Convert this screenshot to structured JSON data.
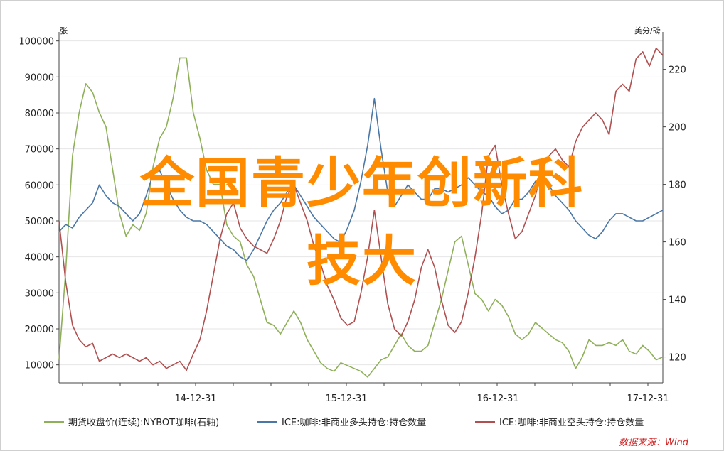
{
  "chart_data": {
    "type": "line",
    "left_unit": "张",
    "right_unit": "美分/磅",
    "y_left_ticks": [
      "10000",
      "20000",
      "30000",
      "40000",
      "50000",
      "60000",
      "70000",
      "80000",
      "90000",
      "100000"
    ],
    "y_left_range": [
      5000,
      102500
    ],
    "y_right_ticks": [
      "120",
      "140",
      "160",
      "180",
      "200",
      "220"
    ],
    "y_right_range": [
      111,
      233
    ],
    "x_ticks": [
      "14-12-31",
      "15-12-31",
      "16-12-31",
      "17-12-31"
    ],
    "series": [
      {
        "name": "期货收盘价(连续):NYBOT咖啡(石轴)",
        "axis": "right",
        "color": "#8fb05a",
        "values": [
          119,
          150,
          190,
          205,
          215,
          212,
          205,
          200,
          185,
          170,
          162,
          166,
          164,
          170,
          186,
          196,
          200,
          210,
          224,
          224,
          205,
          196,
          185,
          180,
          180,
          166,
          162,
          160,
          152,
          148,
          140,
          132,
          131,
          128,
          132,
          136,
          132,
          126,
          122,
          118,
          116,
          115,
          118,
          117,
          116,
          115,
          113,
          116,
          119,
          120,
          124,
          128,
          124,
          122,
          122,
          124,
          132,
          140,
          150,
          160,
          162,
          152,
          142,
          140,
          136,
          140,
          138,
          134,
          128,
          126,
          128,
          132,
          130,
          128,
          126,
          125,
          122,
          116,
          120,
          126,
          124,
          124,
          125,
          124,
          126,
          122,
          121,
          124,
          122,
          119,
          120
        ]
      },
      {
        "name": "ICE:咖啡:非商业多头持仓:持仓数量",
        "axis": "left",
        "color": "#4a77a6",
        "values": [
          47000,
          49000,
          48000,
          51000,
          53000,
          55000,
          60000,
          57000,
          55000,
          54000,
          52000,
          50000,
          52000,
          57000,
          63000,
          64000,
          60000,
          56000,
          53000,
          51000,
          50000,
          50000,
          49000,
          47000,
          45000,
          43000,
          42000,
          40000,
          39000,
          42000,
          46000,
          50000,
          53000,
          55000,
          58000,
          60000,
          57000,
          54000,
          51000,
          49000,
          47000,
          45000,
          44000,
          48000,
          53000,
          61000,
          71000,
          84000,
          70000,
          58000,
          54000,
          57000,
          60000,
          58000,
          56000,
          56000,
          59000,
          59000,
          58000,
          59000,
          60000,
          62000,
          60000,
          58000,
          57000,
          54000,
          52000,
          53000,
          56000,
          56000,
          58000,
          61000,
          62000,
          60000,
          57000,
          55000,
          53000,
          50000,
          48000,
          46000,
          45000,
          47000,
          50000,
          52000,
          52000,
          51000,
          50000,
          50000,
          51000,
          52000,
          53000
        ]
      },
      {
        "name": "ICE:咖啡:非商业空头持仓:持仓数量",
        "axis": "left",
        "color": "#b05050",
        "values": [
          50000,
          33000,
          21000,
          17000,
          15000,
          16000,
          11000,
          12000,
          13000,
          12000,
          13000,
          12000,
          11000,
          12000,
          10000,
          11000,
          9000,
          10000,
          11000,
          8500,
          13000,
          17000,
          25000,
          35000,
          45000,
          52000,
          55000,
          48000,
          45000,
          43000,
          42000,
          41000,
          45000,
          50000,
          57000,
          60000,
          55000,
          50000,
          43000,
          38000,
          32000,
          28000,
          23000,
          21000,
          22000,
          30000,
          40000,
          53000,
          40000,
          27000,
          20000,
          18000,
          22000,
          28000,
          37000,
          42000,
          37000,
          28000,
          21000,
          19000,
          22000,
          30000,
          40000,
          52000,
          68000,
          71000,
          60000,
          52000,
          45000,
          47000,
          52000,
          57000,
          64000,
          68000,
          70000,
          67000,
          65000,
          72000,
          76000,
          78000,
          80000,
          78000,
          74000,
          86000,
          88000,
          86000,
          95000,
          97000,
          93000,
          98000,
          96000
        ]
      }
    ]
  },
  "legend": {
    "items": [
      "期货收盘价(连续):NYBOT咖啡(石轴)",
      "ICE:咖啡:非商业多头持仓:持仓数量",
      "ICE:咖啡:非商业空头持仓:持仓数量"
    ]
  },
  "source": "数据来源：Wind",
  "overlay": {
    "line1": "全国青少年创新科",
    "line2": "技大"
  }
}
